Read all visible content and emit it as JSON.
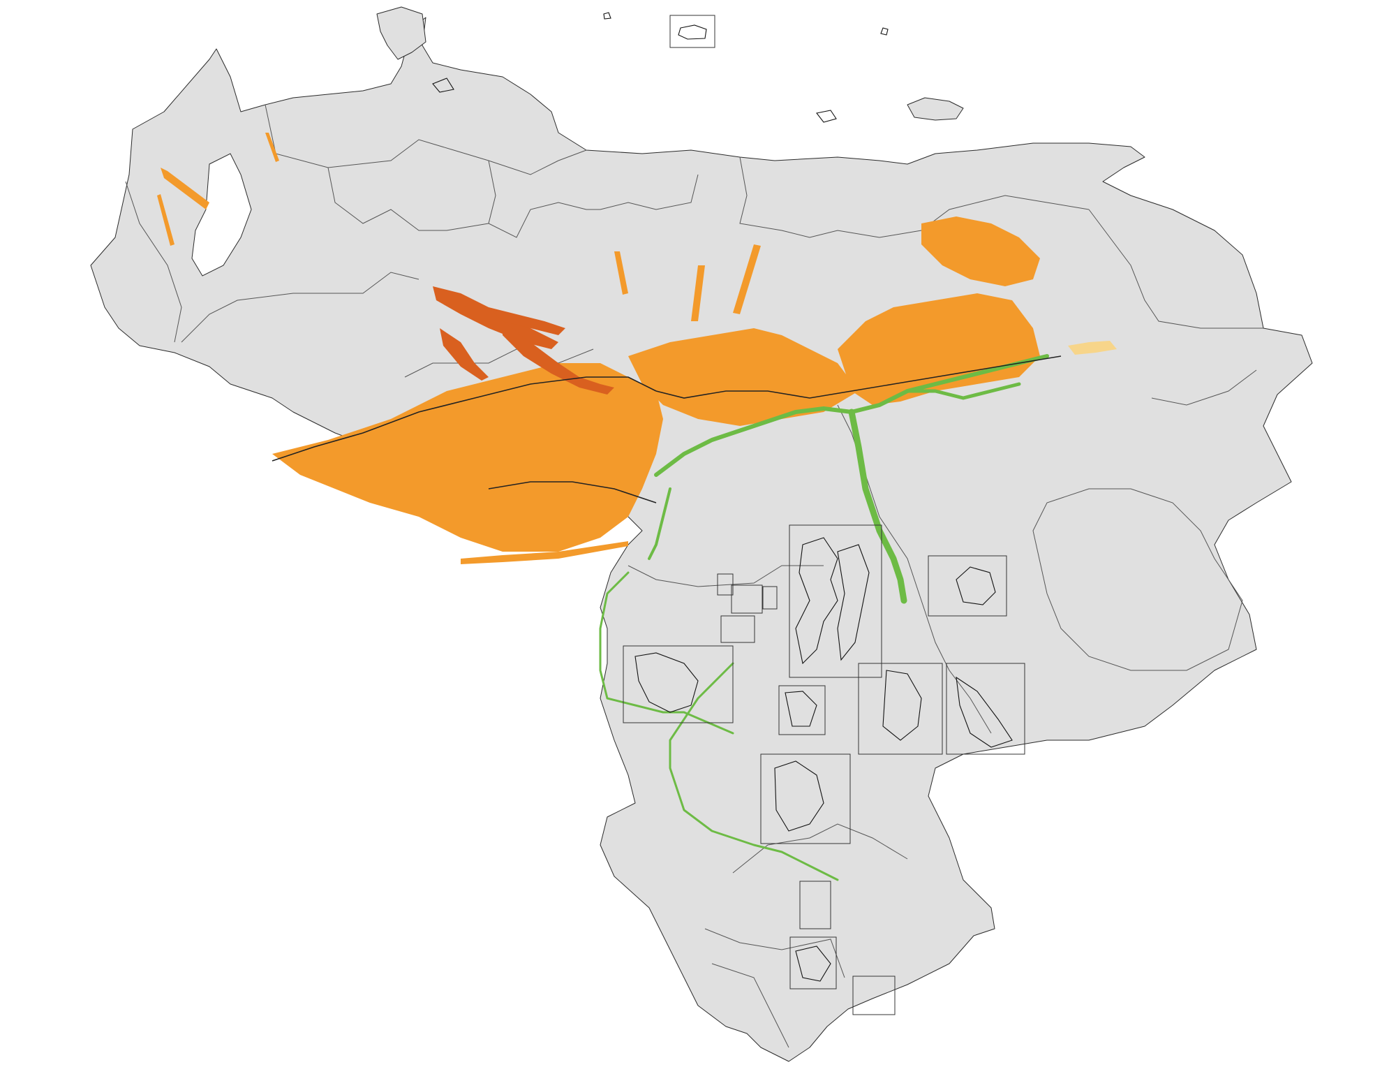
{
  "map": {
    "background": "#ffffff",
    "land_color": "#e0e0e0",
    "boundary_color": "#2a2a2a",
    "legend": null,
    "title": null
  },
  "layers": [
    {
      "id": "orange-floodplain",
      "color": "#f39a2b"
    },
    {
      "id": "dark-orange-floodplain",
      "color": "#d9601f"
    },
    {
      "id": "green-riparian",
      "color": "#6dbb45"
    },
    {
      "id": "light-yellow-patch",
      "color": "#f7d58a"
    }
  ]
}
